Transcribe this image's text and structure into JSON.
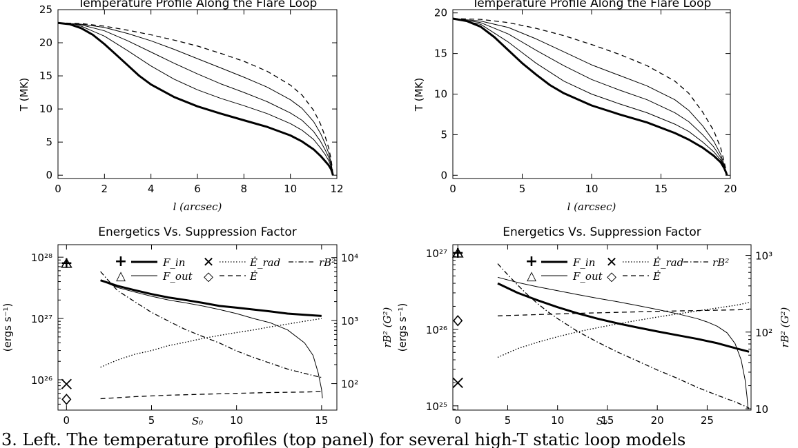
{
  "caption": "3. Left. The temperature profiles (top panel) for several high-T static loop models",
  "chart_data": [
    {
      "type": "line",
      "title": "Temperature Profile Along the Flare Loop",
      "xlabel": "l (arcsec)",
      "ylabel": "T (MK)",
      "xlim": [
        0,
        12
      ],
      "ylim": [
        -0.5,
        25
      ],
      "xticks": [
        "0",
        "2",
        "4",
        "6",
        "8",
        "10",
        "12"
      ],
      "yticks": [
        "0",
        "5",
        "10",
        "15",
        "20",
        "25"
      ],
      "series": [
        {
          "style": "thick",
          "x": [
            0,
            0.5,
            1,
            1.5,
            2,
            2.5,
            3,
            3.5,
            4,
            5,
            6,
            7,
            8,
            9,
            10,
            10.5,
            11,
            11.3,
            11.5,
            11.65,
            11.75,
            11.8,
            11.83
          ],
          "y": [
            23.0,
            22.8,
            22.2,
            21.2,
            19.8,
            18.2,
            16.6,
            15.0,
            13.7,
            11.8,
            10.4,
            9.3,
            8.3,
            7.3,
            6.0,
            5.1,
            3.9,
            2.9,
            2.1,
            1.5,
            0.9,
            0.4,
            0.0
          ]
        },
        {
          "style": "thin",
          "x": [
            0,
            1,
            2,
            3,
            4,
            5,
            6,
            7,
            8,
            9,
            10,
            10.5,
            11,
            11.3,
            11.5,
            11.65,
            11.75,
            11.8,
            11.83
          ],
          "y": [
            23.0,
            22.5,
            21.0,
            18.8,
            16.5,
            14.5,
            12.9,
            11.6,
            10.5,
            9.3,
            7.8,
            6.8,
            5.4,
            4.1,
            3.1,
            2.2,
            1.3,
            0.6,
            0.0
          ]
        },
        {
          "style": "thin",
          "x": [
            0,
            1,
            2,
            3,
            4,
            5,
            6,
            7,
            8,
            9,
            10,
            10.5,
            11,
            11.3,
            11.5,
            11.65,
            11.75,
            11.8,
            11.83
          ],
          "y": [
            23.0,
            22.7,
            21.8,
            20.3,
            18.6,
            16.9,
            15.3,
            13.8,
            12.5,
            11.1,
            9.4,
            8.3,
            6.6,
            5.1,
            3.8,
            2.7,
            1.6,
            0.7,
            0.0
          ]
        },
        {
          "style": "thin",
          "x": [
            0,
            1,
            2,
            3,
            4,
            5,
            6,
            7,
            8,
            9,
            10,
            10.5,
            11,
            11.3,
            11.5,
            11.65,
            11.75,
            11.8,
            11.83
          ],
          "y": [
            23.0,
            22.8,
            22.3,
            21.4,
            20.3,
            19.0,
            17.6,
            16.2,
            14.8,
            13.3,
            11.4,
            10.1,
            8.1,
            6.3,
            4.7,
            3.3,
            1.9,
            0.8,
            0.0
          ]
        },
        {
          "style": "dashed",
          "x": [
            0,
            1,
            2,
            3,
            4,
            5,
            6,
            7,
            8,
            9,
            10,
            10.5,
            11,
            11.3,
            11.5,
            11.65,
            11.75,
            11.8,
            11.83
          ],
          "y": [
            23.0,
            22.9,
            22.5,
            21.9,
            21.2,
            20.4,
            19.5,
            18.4,
            17.2,
            15.7,
            13.6,
            12.1,
            9.8,
            7.7,
            5.8,
            4.1,
            2.4,
            1.1,
            0.0
          ]
        }
      ]
    },
    {
      "type": "line",
      "title": "Temperature Profile Along the Flare Loop",
      "xlabel": "l (arcsec)",
      "ylabel": "T (MK)",
      "xlim": [
        0,
        20
      ],
      "ylim": [
        -0.4,
        20.4
      ],
      "xticks": [
        "0",
        "5",
        "10",
        "15",
        "20"
      ],
      "yticks": [
        "0",
        "5",
        "10",
        "15",
        "20"
      ],
      "series": [
        {
          "style": "thick",
          "x": [
            0,
            1,
            2,
            3,
            4,
            5,
            6,
            7,
            8,
            10,
            12,
            14,
            16,
            17,
            18,
            18.8,
            19.3,
            19.55,
            19.7,
            19.75
          ],
          "y": [
            19.3,
            19.0,
            18.3,
            17.0,
            15.4,
            13.8,
            12.4,
            11.1,
            10.1,
            8.6,
            7.5,
            6.5,
            5.2,
            4.4,
            3.4,
            2.4,
            1.6,
            0.9,
            0.3,
            0.0
          ]
        },
        {
          "style": "thin",
          "x": [
            0,
            2,
            4,
            6,
            8,
            10,
            12,
            14,
            16,
            17,
            18,
            18.8,
            19.3,
            19.55,
            19.7,
            19.75
          ],
          "y": [
            19.3,
            18.6,
            16.4,
            13.8,
            11.6,
            10.0,
            8.8,
            7.7,
            6.3,
            5.4,
            4.1,
            2.9,
            1.9,
            1.0,
            0.3,
            0.0
          ]
        },
        {
          "style": "thin",
          "x": [
            0,
            2,
            4,
            6,
            8,
            10,
            12,
            14,
            16,
            17,
            18,
            18.8,
            19.3,
            19.55,
            19.7,
            19.75
          ],
          "y": [
            19.3,
            18.8,
            17.4,
            15.4,
            13.5,
            11.8,
            10.5,
            9.3,
            7.7,
            6.6,
            5.0,
            3.5,
            2.2,
            1.1,
            0.3,
            0.0
          ]
        },
        {
          "style": "thin",
          "x": [
            0,
            2,
            4,
            6,
            8,
            10,
            12,
            14,
            16,
            17,
            18,
            18.8,
            19.3,
            19.55,
            19.7,
            19.75
          ],
          "y": [
            19.3,
            19.0,
            18.2,
            16.8,
            15.2,
            13.6,
            12.3,
            11.0,
            9.3,
            8.0,
            6.1,
            4.2,
            2.6,
            1.3,
            0.4,
            0.0
          ]
        },
        {
          "style": "dashed",
          "x": [
            0,
            2,
            4,
            6,
            8,
            10,
            12,
            14,
            16,
            17,
            18,
            18.8,
            19.3,
            19.55,
            19.7,
            19.75
          ],
          "y": [
            19.3,
            19.2,
            18.8,
            18.1,
            17.2,
            16.1,
            14.9,
            13.5,
            11.6,
            10.1,
            7.8,
            5.5,
            3.4,
            1.7,
            0.5,
            0.0
          ]
        }
      ]
    },
    {
      "type": "line",
      "title": "Energetics Vs. Suppression Factor",
      "xlabel": "S₀",
      "ylabel": "(ergs s⁻¹)",
      "ylabel_right": "rB² (G²)",
      "log_y": true,
      "xlim": [
        -0.5,
        15.9
      ],
      "ylim": [
        3.2e+25,
        1.6e+28
      ],
      "ylim_right": [
        38,
        16000
      ],
      "xticks": [
        "0",
        "5",
        "10",
        "15"
      ],
      "yticks": [
        "10²⁶",
        "10²⁷",
        "10²⁸"
      ],
      "yticks_right": [
        "10²",
        "10³",
        "10⁴"
      ],
      "legend": [
        {
          "symbol": "+",
          "line": "thick",
          "label": "F_in"
        },
        {
          "symbol": "△",
          "line": "thin",
          "label": "F_out"
        },
        {
          "symbol": "✕",
          "line": "dotted",
          "label": "Ė_rad"
        },
        {
          "symbol": "◇",
          "line": "dashed",
          "label": "Ė"
        },
        {
          "symbol": "",
          "line": "dashdot",
          "label": "rB²"
        }
      ],
      "markers": [
        {
          "symbol": "+",
          "x": 0,
          "y": 8e+27
        },
        {
          "symbol": "△",
          "x": 0,
          "y": 7.8e+27
        },
        {
          "symbol": "✕",
          "x": 0,
          "y": 8.5e+25
        },
        {
          "symbol": "◇",
          "x": 0,
          "y": 4.8e+25
        }
      ],
      "series": [
        {
          "name": "F_in",
          "style": "thick",
          "x": [
            2,
            3,
            4,
            5,
            6,
            7,
            8,
            9,
            10,
            11,
            12,
            13,
            14,
            15
          ],
          "y": [
            4.2e+27,
            3.4e+27,
            2.9e+27,
            2.5e+27,
            2.2e+27,
            2e+27,
            1.8e+27,
            1.6e+27,
            1.5e+27,
            1.4e+27,
            1.3e+27,
            1.2e+27,
            1.15e+27,
            1.1e+27
          ]
        },
        {
          "name": "F_out",
          "style": "thin",
          "x": [
            2,
            3,
            4,
            5,
            6,
            7,
            8,
            9,
            10,
            11,
            12,
            13,
            14,
            14.5,
            14.8,
            15.0,
            15.05
          ],
          "y": [
            4.2e+27,
            3.2e+27,
            2.7e+27,
            2.3e+27,
            2e+27,
            1.8e+27,
            1.6e+27,
            1.4e+27,
            1.2e+27,
            1e+27,
            8.5e+26,
            6.5e+26,
            4e+26,
            2.5e+26,
            1.3e+26,
            7e+25,
            5e+25
          ]
        },
        {
          "name": "Ė_rad",
          "style": "dotted",
          "x": [
            2,
            3,
            4,
            5,
            6,
            7,
            8,
            9,
            10,
            11,
            12,
            13,
            14,
            15
          ],
          "y": [
            1.6e+26,
            2.1e+26,
            2.6e+26,
            3e+26,
            3.6e+26,
            4.1e+26,
            4.7e+26,
            5.3e+26,
            5.9e+26,
            6.5e+26,
            7.3e+26,
            8.1e+26,
            9e+26,
            1e+27
          ]
        },
        {
          "name": "Ė",
          "style": "dashed",
          "x": [
            2,
            4,
            6,
            8,
            10,
            12,
            14,
            15
          ],
          "y": [
            4.9e+25,
            5.3e+25,
            5.6e+25,
            5.8e+25,
            6e+25,
            6.2e+25,
            6.3e+25,
            6.4e+25
          ]
        },
        {
          "name": "rB²",
          "style": "dashdot",
          "axis": "right",
          "x": [
            2,
            2.5,
            3,
            4,
            5,
            6,
            7,
            8,
            9,
            10,
            11,
            12,
            13,
            14,
            15
          ],
          "y": [
            6000,
            4200,
            3000,
            2000,
            1350,
            980,
            720,
            560,
            440,
            330,
            260,
            210,
            170,
            145,
            125
          ]
        }
      ]
    },
    {
      "type": "line",
      "title": "Energetics Vs. Suppression Factor",
      "xlabel": "S₀",
      "ylabel": "(ergs s⁻¹)",
      "ylabel_right": "rB² (G²)",
      "log_y": true,
      "xlim": [
        -0.5,
        29.4
      ],
      "ylim": [
        8.8e+24,
        1.28e+27
      ],
      "ylim_right": [
        9.6,
        1380
      ],
      "xticks": [
        "0",
        "5",
        "10",
        "15",
        "20",
        "25"
      ],
      "yticks": [
        "10²⁵",
        "10²⁶",
        "10²⁷"
      ],
      "yticks_right": [
        "10",
        "10²",
        "10³"
      ],
      "legend": [
        {
          "symbol": "+",
          "line": "thick",
          "label": "F_in"
        },
        {
          "symbol": "△",
          "line": "thin",
          "label": "F_out"
        },
        {
          "symbol": "✕",
          "line": "dotted",
          "label": "Ė_rad"
        },
        {
          "symbol": "◇",
          "line": "dashed",
          "label": "Ė"
        },
        {
          "symbol": "",
          "line": "dashdot",
          "label": "rB²"
        }
      ],
      "markers": [
        {
          "symbol": "+",
          "x": 0,
          "y": 1e+27
        },
        {
          "symbol": "△",
          "x": 0,
          "y": 9.8e+26
        },
        {
          "symbol": "✕",
          "x": 0,
          "y": 2e+25
        },
        {
          "symbol": "◇",
          "x": 0,
          "y": 1.3e+26
        }
      ],
      "series": [
        {
          "name": "F_in",
          "style": "thick",
          "x": [
            4,
            6,
            8,
            10,
            12,
            14,
            16,
            18,
            20,
            22,
            24,
            26,
            28,
            29.2
          ],
          "y": [
            4e+26,
            3e+26,
            2.4e+26,
            1.95e+26,
            1.62e+26,
            1.38e+26,
            1.2e+26,
            1.06e+26,
            9.4e+25,
            8.4e+25,
            7.5e+25,
            6.6e+25,
            5.6e+25,
            5.1e+25
          ]
        },
        {
          "name": "F_out",
          "style": "thin",
          "x": [
            4,
            6,
            8,
            10,
            12,
            14,
            16,
            18,
            20,
            22,
            24,
            25,
            26,
            27,
            27.8,
            28.4,
            28.8,
            29.0,
            29.1
          ],
          "y": [
            4.8e+26,
            4.1e+26,
            3.6e+26,
            3.2e+26,
            2.85e+26,
            2.55e+26,
            2.3e+26,
            2.05e+26,
            1.82e+26,
            1.6e+26,
            1.38e+26,
            1.25e+26,
            1.1e+26,
            9e+25,
            6.5e+25,
            4e+25,
            2.2e+25,
            1.3e+25,
            9e+24
          ]
        },
        {
          "name": "Ė_rad",
          "style": "dotted",
          "x": [
            4,
            6,
            8,
            10,
            12,
            14,
            16,
            18,
            20,
            22,
            24,
            26,
            28,
            29.2
          ],
          "y": [
            4.3e+25,
            5.6e+25,
            6.8e+25,
            8e+25,
            9.3e+25,
            1.05e+26,
            1.18e+26,
            1.31e+26,
            1.45e+26,
            1.59e+26,
            1.74e+26,
            1.9e+26,
            2.08e+26,
            2.25e+26
          ]
        },
        {
          "name": "Ė",
          "style": "dashed",
          "x": [
            4,
            8,
            12,
            16,
            20,
            24,
            28,
            29.2
          ],
          "y": [
            1.5e+26,
            1.56e+26,
            1.62e+26,
            1.67e+26,
            1.72e+26,
            1.76e+26,
            1.8e+26,
            1.82e+26
          ]
        },
        {
          "name": "rB²",
          "style": "dashdot",
          "axis": "right",
          "x": [
            4,
            5,
            6,
            7,
            8,
            9,
            10,
            12,
            14,
            16,
            18,
            20,
            22,
            24,
            26,
            28,
            29.2
          ],
          "y": [
            780,
            560,
            410,
            305,
            235,
            185,
            150,
            102,
            74,
            55,
            42,
            32,
            25,
            19,
            15,
            12,
            10.2
          ]
        }
      ]
    }
  ]
}
